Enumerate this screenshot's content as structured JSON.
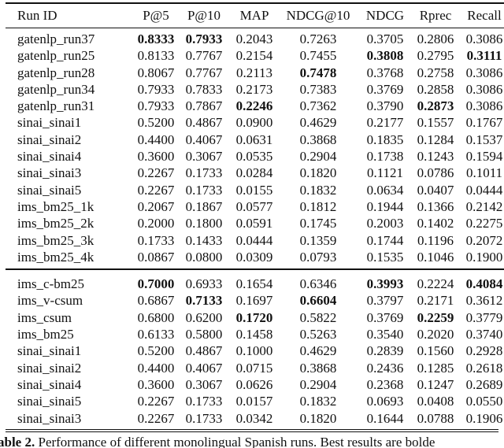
{
  "table": {
    "columns": [
      "Run ID",
      "P@5",
      "P@10",
      "MAP",
      "NDCG@10",
      "NDCG",
      "Rprec",
      "Recall"
    ],
    "sections": [
      {
        "rows": [
          {
            "run_id": "gatenlp_run37",
            "values": [
              "0.8333",
              "0.7933",
              "0.2043",
              "0.7263",
              "0.3705",
              "0.2806",
              "0.3086"
            ],
            "bold": [
              0,
              1
            ]
          },
          {
            "run_id": "gatenlp_run25",
            "values": [
              "0.8133",
              "0.7767",
              "0.2154",
              "0.7455",
              "0.3808",
              "0.2795",
              "0.3111"
            ],
            "bold": [
              4,
              6
            ]
          },
          {
            "run_id": "gatenlp_run28",
            "values": [
              "0.8067",
              "0.7767",
              "0.2113",
              "0.7478",
              "0.3768",
              "0.2758",
              "0.3086"
            ],
            "bold": [
              3
            ]
          },
          {
            "run_id": "gatenlp_run34",
            "values": [
              "0.7933",
              "0.7833",
              "0.2173",
              "0.7383",
              "0.3769",
              "0.2858",
              "0.3086"
            ],
            "bold": []
          },
          {
            "run_id": "gatenlp_run31",
            "values": [
              "0.7933",
              "0.7867",
              "0.2246",
              "0.7362",
              "0.3790",
              "0.2873",
              "0.3086"
            ],
            "bold": [
              2,
              5
            ]
          },
          {
            "run_id": "sinai_sinai1",
            "values": [
              "0.5200",
              "0.4867",
              "0.0900",
              "0.4629",
              "0.2177",
              "0.1557",
              "0.1767"
            ],
            "bold": []
          },
          {
            "run_id": "sinai_sinai2",
            "values": [
              "0.4400",
              "0.4067",
              "0.0631",
              "0.3868",
              "0.1835",
              "0.1284",
              "0.1537"
            ],
            "bold": []
          },
          {
            "run_id": "sinai_sinai4",
            "values": [
              "0.3600",
              "0.3067",
              "0.0535",
              "0.2904",
              "0.1738",
              "0.1243",
              "0.1594"
            ],
            "bold": []
          },
          {
            "run_id": "sinai_sinai3",
            "values": [
              "0.2267",
              "0.1733",
              "0.0284",
              "0.1820",
              "0.1121",
              "0.0786",
              "0.1011"
            ],
            "bold": []
          },
          {
            "run_id": "sinai_sinai5",
            "values": [
              "0.2267",
              "0.1733",
              "0.0155",
              "0.1832",
              "0.0634",
              "0.0407",
              "0.0444"
            ],
            "bold": []
          },
          {
            "run_id": "ims_bm25_1k",
            "values": [
              "0.2067",
              "0.1867",
              "0.0577",
              "0.1812",
              "0.1944",
              "0.1366",
              "0.2142"
            ],
            "bold": []
          },
          {
            "run_id": "ims_bm25_2k",
            "values": [
              "0.2000",
              "0.1800",
              "0.0591",
              "0.1745",
              "0.2003",
              "0.1402",
              "0.2275"
            ],
            "bold": []
          },
          {
            "run_id": "ims_bm25_3k",
            "values": [
              "0.1733",
              "0.1433",
              "0.0444",
              "0.1359",
              "0.1744",
              "0.1196",
              "0.2072"
            ],
            "bold": []
          },
          {
            "run_id": "ims_bm25_4k",
            "values": [
              "0.0867",
              "0.0800",
              "0.0309",
              "0.0793",
              "0.1535",
              "0.1046",
              "0.1900"
            ],
            "bold": []
          }
        ]
      },
      {
        "rows": [
          {
            "run_id": "ims_c-bm25",
            "values": [
              "0.7000",
              "0.6933",
              "0.1654",
              "0.6346",
              "0.3993",
              "0.2224",
              "0.4084"
            ],
            "bold": [
              0,
              4,
              6
            ]
          },
          {
            "run_id": "ims_v-csum",
            "values": [
              "0.6867",
              "0.7133",
              "0.1697",
              "0.6604",
              "0.3797",
              "0.2171",
              "0.3612"
            ],
            "bold": [
              1,
              3
            ]
          },
          {
            "run_id": "ims_csum",
            "values": [
              "0.6800",
              "0.6200",
              "0.1720",
              "0.5822",
              "0.3769",
              "0.2259",
              "0.3779"
            ],
            "bold": [
              2,
              5
            ]
          },
          {
            "run_id": "ims_bm25",
            "values": [
              "0.6133",
              "0.5800",
              "0.1458",
              "0.5263",
              "0.3540",
              "0.2020",
              "0.3740"
            ],
            "bold": []
          },
          {
            "run_id": "sinai_sinai1",
            "values": [
              "0.5200",
              "0.4867",
              "0.1000",
              "0.4629",
              "0.2839",
              "0.1560",
              "0.2928"
            ],
            "bold": []
          },
          {
            "run_id": "sinai_sinai2",
            "values": [
              "0.4400",
              "0.4067",
              "0.0715",
              "0.3868",
              "0.2436",
              "0.1285",
              "0.2618"
            ],
            "bold": []
          },
          {
            "run_id": "sinai_sinai4",
            "values": [
              "0.3600",
              "0.3067",
              "0.0626",
              "0.2904",
              "0.2368",
              "0.1247",
              "0.2689"
            ],
            "bold": []
          },
          {
            "run_id": "sinai_sinai5",
            "values": [
              "0.2267",
              "0.1733",
              "0.0157",
              "0.1832",
              "0.0693",
              "0.0408",
              "0.0550"
            ],
            "bold": []
          },
          {
            "run_id": "sinai_sinai3",
            "values": [
              "0.2267",
              "0.1733",
              "0.0342",
              "0.1820",
              "0.1644",
              "0.0788",
              "0.1906"
            ],
            "bold": []
          }
        ]
      }
    ]
  },
  "caption": {
    "label": "able 2.",
    "text": " Performance of different monolingual Spanish runs. Best results are bolde"
  }
}
